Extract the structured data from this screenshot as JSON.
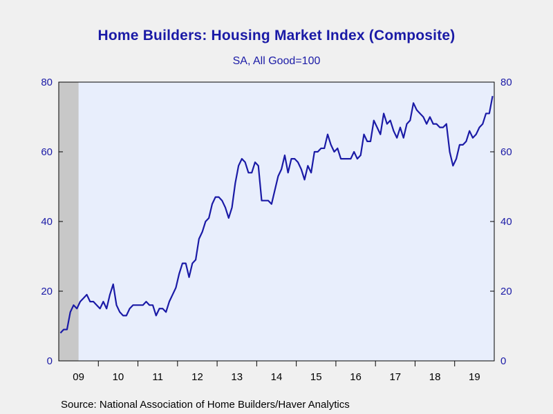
{
  "chart_data": {
    "type": "line",
    "title": "Home Builders: Housing Market Index (Composite)",
    "subtitle": "SA, All Good=100",
    "source": "Source:  National Association of Home Builders/Haver Analytics",
    "ylim": [
      0,
      80
    ],
    "y_ticks": [
      "0",
      "20",
      "40",
      "60",
      "80"
    ],
    "y_ticks_right": [
      "0",
      "20",
      "40",
      "60",
      "80"
    ],
    "x_tick_labels": [
      "09",
      "10",
      "11",
      "12",
      "13",
      "14",
      "15",
      "16",
      "17",
      "18",
      "19"
    ],
    "x_range": [
      "2009-01",
      "2019-12"
    ],
    "grid": false,
    "recession_shading": {
      "start": "2009-01",
      "end": "2009-06",
      "color": "#c8c8c8"
    },
    "background_color": "#e8eefc",
    "line_color": "#1a1aa6",
    "series": [
      {
        "frequency": "monthly",
        "start": "2009-01",
        "values": [
          8,
          9,
          9,
          14,
          16,
          15,
          17,
          18,
          19,
          17,
          17,
          16,
          15,
          17,
          15,
          19,
          22,
          16,
          14,
          13,
          13,
          15,
          16,
          16,
          16,
          16,
          17,
          16,
          16,
          13,
          15,
          15,
          14,
          17,
          19,
          21,
          25,
          28,
          28,
          24,
          28,
          29,
          35,
          37,
          40,
          41,
          45,
          47,
          47,
          46,
          44,
          41,
          44,
          51,
          56,
          58,
          57,
          54,
          54,
          57,
          56,
          46,
          46,
          46,
          45,
          49,
          53,
          55,
          59,
          54,
          58,
          58,
          57,
          55,
          52,
          56,
          54,
          60,
          60,
          61,
          61,
          65,
          62,
          60,
          61,
          58,
          58,
          58,
          58,
          60,
          58,
          59,
          65,
          63,
          63,
          69,
          67,
          65,
          71,
          68,
          69,
          66,
          64,
          67,
          64,
          68,
          69,
          74,
          72,
          71,
          70,
          68,
          70,
          68,
          68,
          67,
          67,
          68,
          60,
          56,
          58,
          62,
          62,
          63,
          66,
          64,
          65,
          67,
          68,
          71,
          71,
          76
        ]
      }
    ]
  }
}
